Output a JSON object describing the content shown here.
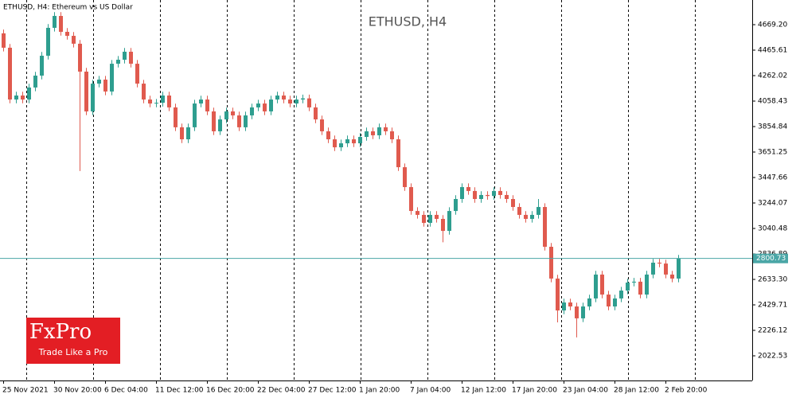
{
  "chart_data": {
    "type": "candlestick",
    "title": "ETHUSD, H4:  Ethereum vs US Dollar",
    "watermark": "ETHUSD, H4",
    "logo": {
      "brand": "FxPro",
      "tagline": "Trade Like a Pro"
    },
    "current_price": {
      "value": 2800.73,
      "label": "2800.73"
    },
    "up_color": "#2e9e8f",
    "down_color": "#e05a4e",
    "line_color": "#4aa6a6",
    "ylim": [
      1825.3,
      4866.4
    ],
    "yticks": [
      {
        "value": 2022.53,
        "label": "2022.53"
      },
      {
        "value": 2226.12,
        "label": "2226.12"
      },
      {
        "value": 2429.71,
        "label": "2429.71"
      },
      {
        "value": 2633.3,
        "label": "2633.30"
      },
      {
        "value": 2836.89,
        "label": "2836.89"
      },
      {
        "value": 3040.48,
        "label": "3040.48"
      },
      {
        "value": 3244.07,
        "label": "3244.07"
      },
      {
        "value": 3447.66,
        "label": "3447.66"
      },
      {
        "value": 3651.25,
        "label": "3651.25"
      },
      {
        "value": 3854.84,
        "label": "3854.84"
      },
      {
        "value": 4058.43,
        "label": "4058.43"
      },
      {
        "value": 4262.02,
        "label": "4262.02"
      },
      {
        "value": 4465.61,
        "label": "4465.61"
      },
      {
        "value": 4669.2,
        "label": "4669.20"
      }
    ],
    "categories": [
      "25 Nov 2021",
      null,
      null,
      null,
      null,
      null,
      null,
      null,
      "30 Nov 20:00",
      null,
      null,
      null,
      null,
      null,
      null,
      null,
      "6 Dec 04:00",
      null,
      null,
      null,
      null,
      null,
      null,
      null,
      "11 Dec 12:00",
      null,
      null,
      null,
      null,
      null,
      null,
      null,
      "16 Dec 20:00",
      null,
      null,
      null,
      null,
      null,
      null,
      null,
      "22 Dec 04:00",
      null,
      null,
      null,
      null,
      null,
      null,
      null,
      "27 Dec 12:00",
      null,
      null,
      null,
      null,
      null,
      null,
      null,
      "1 Jan 20:00",
      null,
      null,
      null,
      null,
      null,
      null,
      null,
      "7 Jan 04:00",
      null,
      null,
      null,
      null,
      null,
      null,
      null,
      "12 Jan 12:00",
      null,
      null,
      null,
      null,
      null,
      null,
      null,
      "17 Jan 20:00",
      null,
      null,
      null,
      null,
      null,
      null,
      null,
      "23 Jan 04:00",
      null,
      null,
      null,
      null,
      null,
      null,
      null,
      "28 Jan 12:00",
      null,
      null,
      null,
      null,
      null,
      null,
      null,
      "2 Feb 20:00",
      null,
      null
    ],
    "open": [
      4600,
      4485,
      4071,
      4103,
      4071,
      4167,
      4262,
      4421,
      4644,
      4739,
      4612,
      4580,
      4517,
      4294,
      3976,
      4198,
      4230,
      4135,
      4357,
      4389,
      4453,
      4357,
      4198,
      4071,
      4039,
      4045,
      4103,
      4008,
      3849,
      3753,
      3849,
      4039,
      4071,
      3976,
      3817,
      3912,
      3976,
      3944,
      3849,
      3944,
      4008,
      4039,
      3976,
      4071,
      4103,
      4071,
      4039,
      4071,
      4080,
      4008,
      3912,
      3817,
      3753,
      3689,
      3721,
      3753,
      3721,
      3772,
      3817,
      3785,
      3849,
      3817,
      3753,
      3530,
      3371,
      3180,
      3149,
      3085,
      3149,
      3117,
      3021,
      3180,
      3276,
      3371,
      3340,
      3276,
      3308,
      3300,
      3340,
      3308,
      3276,
      3212,
      3149,
      3117,
      3149,
      3212,
      2894,
      2640,
      2385,
      2449,
      2417,
      2322,
      2417,
      2481,
      2672,
      2512,
      2417,
      2481,
      2544,
      2608,
      2615,
      2512,
      2672,
      2767,
      2760,
      2672,
      2640
    ],
    "high": [
      4630,
      4515,
      4133,
      4133,
      4197,
      4292,
      4451,
      4674,
      4769,
      4769,
      4642,
      4610,
      4547,
      4324,
      4228,
      4260,
      4260,
      4387,
      4419,
      4483,
      4483,
      4387,
      4228,
      4101,
      4075,
      4133,
      4133,
      4038,
      3879,
      3879,
      4069,
      4101,
      4101,
      4006,
      3942,
      4006,
      4006,
      3974,
      3974,
      4038,
      4069,
      4069,
      4101,
      4133,
      4133,
      4101,
      4101,
      4110,
      4110,
      4038,
      3942,
      3847,
      3783,
      3751,
      3783,
      3783,
      3802,
      3847,
      3847,
      3879,
      3879,
      3847,
      3783,
      3560,
      3401,
      3210,
      3179,
      3179,
      3179,
      3147,
      3210,
      3306,
      3401,
      3401,
      3370,
      3338,
      3338,
      3370,
      3370,
      3338,
      3306,
      3242,
      3179,
      3179,
      3276,
      3242,
      2924,
      2670,
      2479,
      2479,
      2447,
      2447,
      2511,
      2702,
      2702,
      2542,
      2511,
      2574,
      2638,
      2645,
      2645,
      2702,
      2797,
      2797,
      2790,
      2702,
      2829
    ],
    "low": [
      4455,
      4041,
      4041,
      4041,
      4041,
      4137,
      4232,
      4391,
      4614,
      4582,
      4550,
      4487,
      3499,
      3946,
      3946,
      4168,
      4105,
      4105,
      4327,
      4359,
      4327,
      4168,
      4041,
      4009,
      4009,
      4015,
      3978,
      3819,
      3723,
      3723,
      3819,
      4009,
      3946,
      3787,
      3787,
      3882,
      3914,
      3819,
      3819,
      3914,
      3978,
      3946,
      3946,
      4041,
      4041,
      4009,
      4009,
      4041,
      3978,
      3882,
      3787,
      3723,
      3659,
      3659,
      3691,
      3691,
      3691,
      3742,
      3755,
      3755,
      3787,
      3723,
      3500,
      3341,
      3150,
      3119,
      3055,
      3055,
      3087,
      2930,
      2991,
      3150,
      3246,
      3310,
      3246,
      3246,
      3270,
      3270,
      3278,
      3246,
      3182,
      3119,
      3087,
      3087,
      3119,
      2864,
      2610,
      2290,
      2355,
      2387,
      2170,
      2292,
      2387,
      2451,
      2482,
      2387,
      2387,
      2451,
      2514,
      2578,
      2482,
      2482,
      2642,
      2730,
      2642,
      2610,
      2610
    ],
    "close": [
      4485,
      4071,
      4103,
      4071,
      4167,
      4262,
      4421,
      4644,
      4739,
      4612,
      4580,
      4517,
      4294,
      3976,
      4198,
      4230,
      4135,
      4357,
      4389,
      4453,
      4357,
      4198,
      4071,
      4039,
      4045,
      4103,
      4008,
      3849,
      3753,
      3849,
      4039,
      4071,
      3976,
      3817,
      3912,
      3976,
      3944,
      3849,
      3944,
      4008,
      4039,
      3976,
      4071,
      4103,
      4071,
      4039,
      4071,
      4080,
      4008,
      3912,
      3817,
      3753,
      3689,
      3721,
      3753,
      3721,
      3772,
      3817,
      3785,
      3849,
      3817,
      3753,
      3530,
      3371,
      3180,
      3149,
      3085,
      3149,
      3117,
      3021,
      3180,
      3276,
      3371,
      3340,
      3276,
      3308,
      3300,
      3340,
      3308,
      3276,
      3212,
      3149,
      3117,
      3149,
      3212,
      2894,
      2640,
      2385,
      2449,
      2417,
      2322,
      2417,
      2481,
      2672,
      2512,
      2417,
      2481,
      2544,
      2608,
      2615,
      2512,
      2672,
      2767,
      2760,
      2672,
      2640,
      2800.73
    ]
  }
}
